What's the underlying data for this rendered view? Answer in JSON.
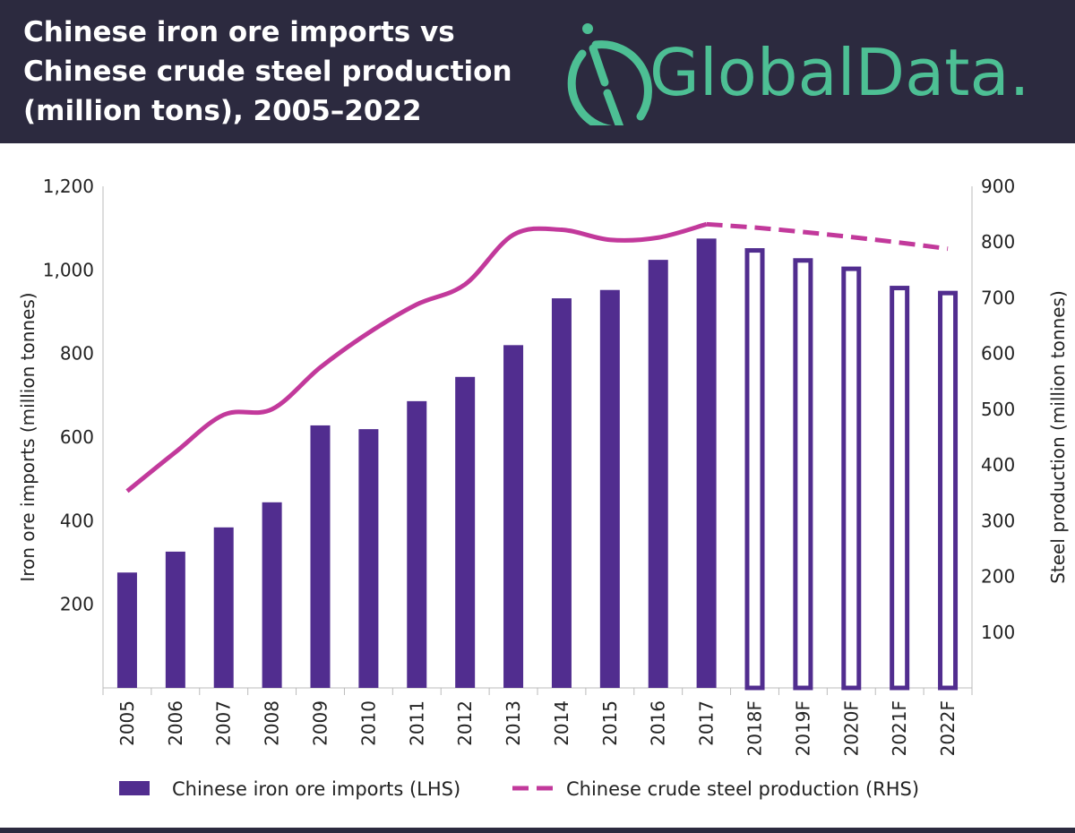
{
  "header": {
    "title_lines": [
      "Chinese iron ore imports vs",
      "Chinese crude steel production",
      "(million tons), 2005–2022"
    ],
    "logo_text": "GlobalData."
  },
  "colors": {
    "header_bg": "#2c2a3f",
    "logo": "#4dbf94",
    "bar": "#512d8f",
    "line": "#c2399b"
  },
  "chart_data": {
    "type": "bar+line",
    "title": "Chinese iron ore imports vs Chinese crude steel production (million tons), 2005–2022",
    "categories": [
      "2005",
      "2006",
      "2007",
      "2008",
      "2009",
      "2010",
      "2011",
      "2012",
      "2013",
      "2014",
      "2015",
      "2016",
      "2017",
      "2018F",
      "2019F",
      "2020F",
      "2021F",
      "2022F"
    ],
    "forecast_from_index": 13,
    "series": [
      {
        "name": "Chinese iron ore imports (LHS)",
        "type": "bar",
        "axis": "left",
        "values": [
          276,
          326,
          384,
          444,
          628,
          619,
          686,
          744,
          820,
          932,
          952,
          1024,
          1075,
          1052,
          1028,
          1008,
          962,
          950
        ]
      },
      {
        "name": "Chinese crude steel production (RHS)",
        "type": "line",
        "axis": "right",
        "values": [
          353,
          423,
          490,
          500,
          575,
          637,
          688,
          724,
          813,
          822,
          804,
          808,
          832,
          826,
          818,
          809,
          799,
          788
        ]
      }
    ],
    "ylabel_left": "Iron ore imports (million tonnes)",
    "ylabel_right": "Steel production (million tonnes)",
    "ylim_left": [
      0,
      1200
    ],
    "ylim_right": [
      0,
      900
    ],
    "yticks_left": [
      "200",
      "400",
      "600",
      "800",
      "1,000",
      "1,200"
    ],
    "yticks_left_values": [
      200,
      400,
      600,
      800,
      1000,
      1200
    ],
    "yticks_right": [
      "100",
      "200",
      "300",
      "400",
      "500",
      "600",
      "700",
      "800",
      "900"
    ],
    "yticks_right_values": [
      100,
      200,
      300,
      400,
      500,
      600,
      700,
      800,
      900
    ],
    "legend_placement": "bottom",
    "grid": false
  }
}
